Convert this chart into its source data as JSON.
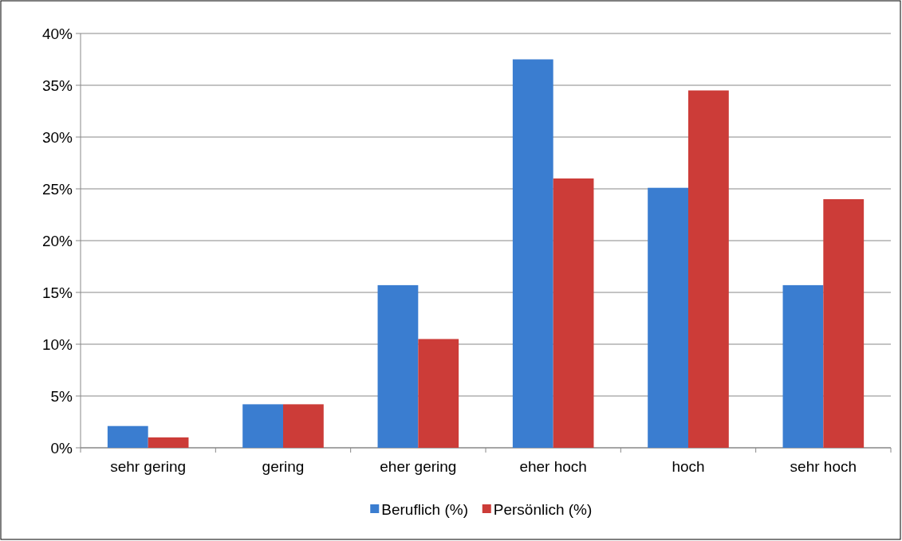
{
  "chart_data": {
    "type": "bar",
    "categories": [
      "sehr gering",
      "gering",
      "eher gering",
      "eher hoch",
      "hoch",
      "sehr hoch"
    ],
    "series": [
      {
        "name": "Beruflich (%)",
        "color": "#3a7dd0",
        "values": [
          2.1,
          4.2,
          15.7,
          37.5,
          25.1,
          15.7
        ]
      },
      {
        "name": "Persönlich (%)",
        "color": "#cc3c38",
        "values": [
          1.0,
          4.2,
          10.5,
          26.0,
          34.5,
          24.0
        ]
      }
    ],
    "ylim": [
      0,
      40
    ],
    "yticks": [
      {
        "value": 0,
        "label": "0%"
      },
      {
        "value": 5,
        "label": "5%"
      },
      {
        "value": 10,
        "label": "10%"
      },
      {
        "value": 15,
        "label": "15%"
      },
      {
        "value": 20,
        "label": "20%"
      },
      {
        "value": 25,
        "label": "25%"
      },
      {
        "value": 30,
        "label": "30%"
      },
      {
        "value": 35,
        "label": "35%"
      },
      {
        "value": 40,
        "label": "40%"
      }
    ],
    "grid": "y",
    "legend": "bottom"
  }
}
